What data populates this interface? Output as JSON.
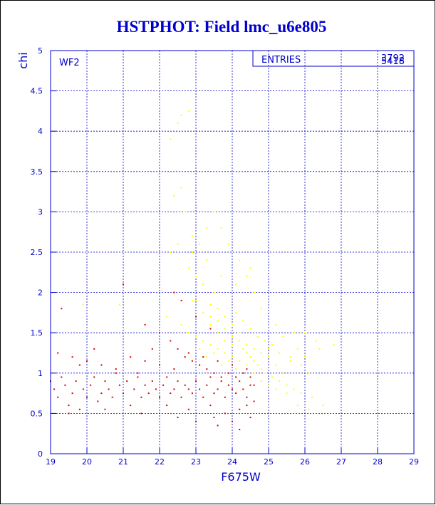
{
  "chart_data": {
    "type": "scatter",
    "title": "HSTPHOT: Field lmc_u6e805",
    "xlabel": "F675W",
    "ylabel": "chi",
    "xlim": [
      19,
      29
    ],
    "ylim": [
      0,
      5
    ],
    "xticks": [
      "19",
      "20",
      "21",
      "22",
      "23",
      "24",
      "25",
      "26",
      "27",
      "28",
      "29"
    ],
    "yticks": [
      "0",
      "0.5",
      "1",
      "1.5",
      "2",
      "2.5",
      "3",
      "3.5",
      "4",
      "4.5",
      "5"
    ],
    "grid": true,
    "panel_label": "WF2",
    "stats": {
      "label": "ENTRIES",
      "value_a": "3792",
      "value_b": "5418"
    },
    "colors": {
      "axis": "#0000cc",
      "series_red": "#dd0000",
      "series_yellow": "#ffff00"
    },
    "series": [
      {
        "color": "#ffff00",
        "points": [
          [
            22.3,
            3.9
          ],
          [
            22.5,
            4.1
          ],
          [
            22.6,
            4.2
          ],
          [
            22.8,
            4.25
          ],
          [
            22.4,
            3.2
          ],
          [
            22.6,
            3.3
          ],
          [
            22.7,
            3.0
          ],
          [
            22.9,
            2.7
          ],
          [
            22.5,
            2.6
          ],
          [
            22.3,
            2.5
          ],
          [
            22.8,
            2.3
          ],
          [
            23.0,
            2.2
          ],
          [
            23.2,
            2.1
          ],
          [
            22.9,
            1.9
          ],
          [
            23.4,
            1.85
          ],
          [
            23.3,
            2.4
          ],
          [
            23.5,
            2.0
          ],
          [
            23.6,
            1.8
          ],
          [
            23.8,
            1.7
          ],
          [
            24.0,
            1.6
          ],
          [
            24.2,
            1.5
          ],
          [
            23.4,
            1.6
          ],
          [
            23.6,
            1.5
          ],
          [
            23.8,
            1.4
          ],
          [
            24.0,
            1.35
          ],
          [
            24.3,
            1.3
          ],
          [
            24.5,
            1.2
          ],
          [
            24.7,
            1.1
          ],
          [
            24.9,
            1.0
          ],
          [
            25.1,
            0.95
          ],
          [
            25.3,
            0.9
          ],
          [
            25.5,
            0.85
          ],
          [
            25.7,
            0.8
          ],
          [
            25.9,
            0.75
          ],
          [
            26.2,
            0.7
          ],
          [
            26.5,
            0.6
          ],
          [
            26.8,
            1.35
          ],
          [
            23.1,
            1.3
          ],
          [
            23.3,
            1.2
          ],
          [
            23.5,
            1.25
          ],
          [
            23.7,
            1.1
          ],
          [
            23.9,
            1.15
          ],
          [
            24.1,
            1.05
          ],
          [
            24.4,
            1.1
          ],
          [
            24.6,
            1.0
          ],
          [
            24.8,
            1.05
          ],
          [
            25.0,
            1.2
          ],
          [
            25.2,
            1.1
          ],
          [
            25.4,
            1.0
          ],
          [
            25.6,
            1.15
          ],
          [
            25.8,
            1.3
          ],
          [
            26.0,
            1.5
          ],
          [
            26.3,
            1.4
          ],
          [
            25.2,
            1.6
          ],
          [
            24.8,
            1.8
          ],
          [
            24.6,
            2.0
          ],
          [
            24.4,
            2.2
          ],
          [
            24.2,
            2.4
          ],
          [
            23.9,
            2.6
          ],
          [
            23.7,
            2.8
          ],
          [
            23.5,
            3.0
          ],
          [
            23.3,
            2.8
          ],
          [
            23.1,
            2.6
          ],
          [
            22.9,
            2.5
          ],
          [
            23.0,
            1.9
          ],
          [
            23.2,
            1.75
          ],
          [
            23.4,
            1.7
          ],
          [
            23.6,
            1.65
          ],
          [
            23.8,
            1.55
          ],
          [
            24.0,
            1.45
          ],
          [
            24.2,
            1.4
          ],
          [
            24.4,
            1.35
          ],
          [
            24.6,
            1.3
          ],
          [
            24.8,
            1.25
          ],
          [
            25.0,
            1.3
          ],
          [
            25.3,
            1.25
          ],
          [
            25.6,
            1.2
          ],
          [
            25.9,
            1.1
          ],
          [
            26.1,
            1.0
          ],
          [
            26.4,
            1.3
          ],
          [
            19.9,
            1.85
          ],
          [
            20.9,
            1.85
          ],
          [
            22.2,
            1.7
          ],
          [
            22.6,
            1.6
          ],
          [
            22.8,
            1.5
          ],
          [
            23.0,
            1.45
          ],
          [
            23.2,
            1.4
          ],
          [
            23.4,
            1.35
          ],
          [
            23.6,
            1.3
          ],
          [
            23.8,
            1.25
          ],
          [
            24.0,
            1.2
          ],
          [
            24.2,
            1.15
          ],
          [
            24.4,
            1.25
          ],
          [
            24.6,
            1.15
          ],
          [
            24.8,
            0.9
          ],
          [
            25.0,
            0.85
          ],
          [
            25.2,
            0.8
          ],
          [
            25.5,
            0.75
          ],
          [
            25.8,
            0.6
          ],
          [
            26.1,
            0.55
          ],
          [
            24.1,
            1.75
          ],
          [
            24.3,
            1.65
          ],
          [
            24.5,
            1.55
          ],
          [
            24.7,
            1.45
          ],
          [
            24.9,
            1.4
          ],
          [
            25.1,
            1.35
          ],
          [
            25.4,
            1.45
          ],
          [
            25.7,
            1.5
          ],
          [
            26.0,
            1.2
          ],
          [
            24.5,
            2.3
          ],
          [
            24.1,
            2.1
          ],
          [
            23.7,
            2.2
          ]
        ]
      },
      {
        "color": "#dd0000",
        "points": [
          [
            19.0,
            0.9
          ],
          [
            19.1,
            0.8
          ],
          [
            19.2,
            0.7
          ],
          [
            19.3,
            0.95
          ],
          [
            19.4,
            0.85
          ],
          [
            19.5,
            0.6
          ],
          [
            19.6,
            0.75
          ],
          [
            19.7,
            0.9
          ],
          [
            19.8,
            1.1
          ],
          [
            19.9,
            0.8
          ],
          [
            20.0,
            0.7
          ],
          [
            20.1,
            0.85
          ],
          [
            20.2,
            0.95
          ],
          [
            20.3,
            0.65
          ],
          [
            20.4,
            0.75
          ],
          [
            20.5,
            0.9
          ],
          [
            20.6,
            0.8
          ],
          [
            20.7,
            0.7
          ],
          [
            20.8,
            1.0
          ],
          [
            20.9,
            0.85
          ],
          [
            21.0,
            0.75
          ],
          [
            21.1,
            0.9
          ],
          [
            21.2,
            0.6
          ],
          [
            21.3,
            0.8
          ],
          [
            21.4,
            0.95
          ],
          [
            21.5,
            0.7
          ],
          [
            21.6,
            0.85
          ],
          [
            21.7,
            0.75
          ],
          [
            21.8,
            0.9
          ],
          [
            21.9,
            0.8
          ],
          [
            22.0,
            0.7
          ],
          [
            22.1,
            0.85
          ],
          [
            22.2,
            0.95
          ],
          [
            22.3,
            0.75
          ],
          [
            22.4,
            0.8
          ],
          [
            22.5,
            0.9
          ],
          [
            22.6,
            0.7
          ],
          [
            22.7,
            0.85
          ],
          [
            22.8,
            0.8
          ],
          [
            22.9,
            0.75
          ],
          [
            23.0,
            0.9
          ],
          [
            23.1,
            0.8
          ],
          [
            23.2,
            0.7
          ],
          [
            23.3,
            0.85
          ],
          [
            23.4,
            0.95
          ],
          [
            23.5,
            0.75
          ],
          [
            23.6,
            0.8
          ],
          [
            23.7,
            0.9
          ],
          [
            23.8,
            0.7
          ],
          [
            23.9,
            0.85
          ],
          [
            24.0,
            0.8
          ],
          [
            24.1,
            0.75
          ],
          [
            24.2,
            0.9
          ],
          [
            24.3,
            0.8
          ],
          [
            24.4,
            0.7
          ],
          [
            24.5,
            0.85
          ],
          [
            19.3,
            1.8
          ],
          [
            21.0,
            2.1
          ],
          [
            21.6,
            1.6
          ],
          [
            22.0,
            1.5
          ],
          [
            22.3,
            1.4
          ],
          [
            22.5,
            1.3
          ],
          [
            22.7,
            1.2
          ],
          [
            22.9,
            1.15
          ],
          [
            23.1,
            1.1
          ],
          [
            23.3,
            1.05
          ],
          [
            23.5,
            1.0
          ],
          [
            23.7,
            0.95
          ],
          [
            23.9,
            1.0
          ],
          [
            24.1,
            0.95
          ],
          [
            24.3,
            1.0
          ],
          [
            24.5,
            0.95
          ],
          [
            19.2,
            1.25
          ],
          [
            19.6,
            1.2
          ],
          [
            20.0,
            1.15
          ],
          [
            20.4,
            1.1
          ],
          [
            20.8,
            1.05
          ],
          [
            21.2,
            1.2
          ],
          [
            21.6,
            1.15
          ],
          [
            22.0,
            1.1
          ],
          [
            22.4,
            1.05
          ],
          [
            22.8,
            1.25
          ],
          [
            23.2,
            1.2
          ],
          [
            23.6,
            1.15
          ],
          [
            24.0,
            1.1
          ],
          [
            24.4,
            1.05
          ],
          [
            19.5,
            0.5
          ],
          [
            20.5,
            0.55
          ],
          [
            21.5,
            0.5
          ],
          [
            22.5,
            0.45
          ],
          [
            23.0,
            0.4
          ],
          [
            23.5,
            0.45
          ],
          [
            24.0,
            0.4
          ],
          [
            24.5,
            0.45
          ],
          [
            22.2,
            0.6
          ],
          [
            22.8,
            0.55
          ],
          [
            23.4,
            0.6
          ],
          [
            24.2,
            0.55
          ],
          [
            23.8,
            0.5
          ],
          [
            24.4,
            0.6
          ],
          [
            22.6,
            1.9
          ],
          [
            23.0,
            1.7
          ],
          [
            23.4,
            1.55
          ],
          [
            22.4,
            2.0
          ],
          [
            21.8,
            1.3
          ],
          [
            21.4,
            1.0
          ],
          [
            20.2,
            1.3
          ],
          [
            19.8,
            0.55
          ],
          [
            23.6,
            0.35
          ],
          [
            24.2,
            0.3
          ],
          [
            24.6,
            0.65
          ],
          [
            24.6,
            0.85
          ]
        ]
      }
    ]
  }
}
